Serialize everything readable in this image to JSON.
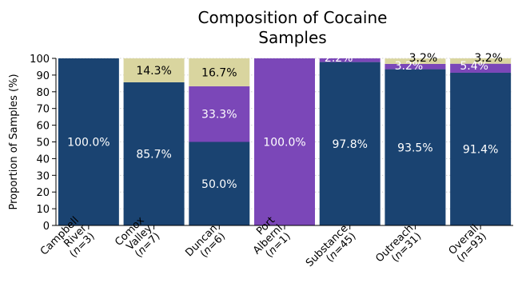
{
  "chart_data": {
    "type": "bar",
    "stacked": true,
    "title": "Composition of Cocaine Samples",
    "title_lines": [
      "Composition of Cocaine",
      "Samples"
    ],
    "ylabel": "Proportion of Samples (%)",
    "ylim": [
      0,
      100
    ],
    "yticks": [
      0,
      10,
      20,
      30,
      40,
      50,
      60,
      70,
      80,
      90,
      100
    ],
    "grid": "horizontal dotted",
    "categories": [
      {
        "lines": [
          "Campbell",
          "River",
          "(n=3)"
        ]
      },
      {
        "lines": [
          "Comox",
          "Valley",
          "(n=7)"
        ]
      },
      {
        "lines": [
          "Duncan",
          "(n=6)"
        ]
      },
      {
        "lines": [
          "Port",
          "Alberni",
          "(n=1)"
        ]
      },
      {
        "lines": [
          "Substance",
          "(n=45)"
        ]
      },
      {
        "lines": [
          "Outreach",
          "(n=31)"
        ]
      },
      {
        "lines": [
          "Overall",
          "(n=93)"
        ]
      }
    ],
    "series": [
      {
        "color": "#1a4371",
        "label_color": "#ffffff",
        "values": [
          100.0,
          85.7,
          50.0,
          0,
          97.8,
          93.5,
          91.4
        ]
      },
      {
        "color": "#7b47b8",
        "label_color": "#ffffff",
        "values": [
          0,
          0,
          33.3,
          100.0,
          2.2,
          3.2,
          5.4
        ]
      },
      {
        "color": "#d9d59f",
        "label_color": "#000000",
        "values": [
          0,
          14.3,
          16.7,
          0,
          0,
          3.2,
          3.2
        ]
      }
    ],
    "data_labels": [
      [
        "100.0%",
        "85.7%",
        "50.0%",
        "",
        "97.8%",
        "93.5%",
        "91.4%"
      ],
      [
        "",
        "",
        "33.3%",
        "100.0%",
        "2.2%",
        "3.2%",
        "5.4%"
      ],
      [
        "",
        "14.3%",
        "16.7%",
        "",
        "",
        "3.2%",
        "3.2%"
      ]
    ]
  }
}
